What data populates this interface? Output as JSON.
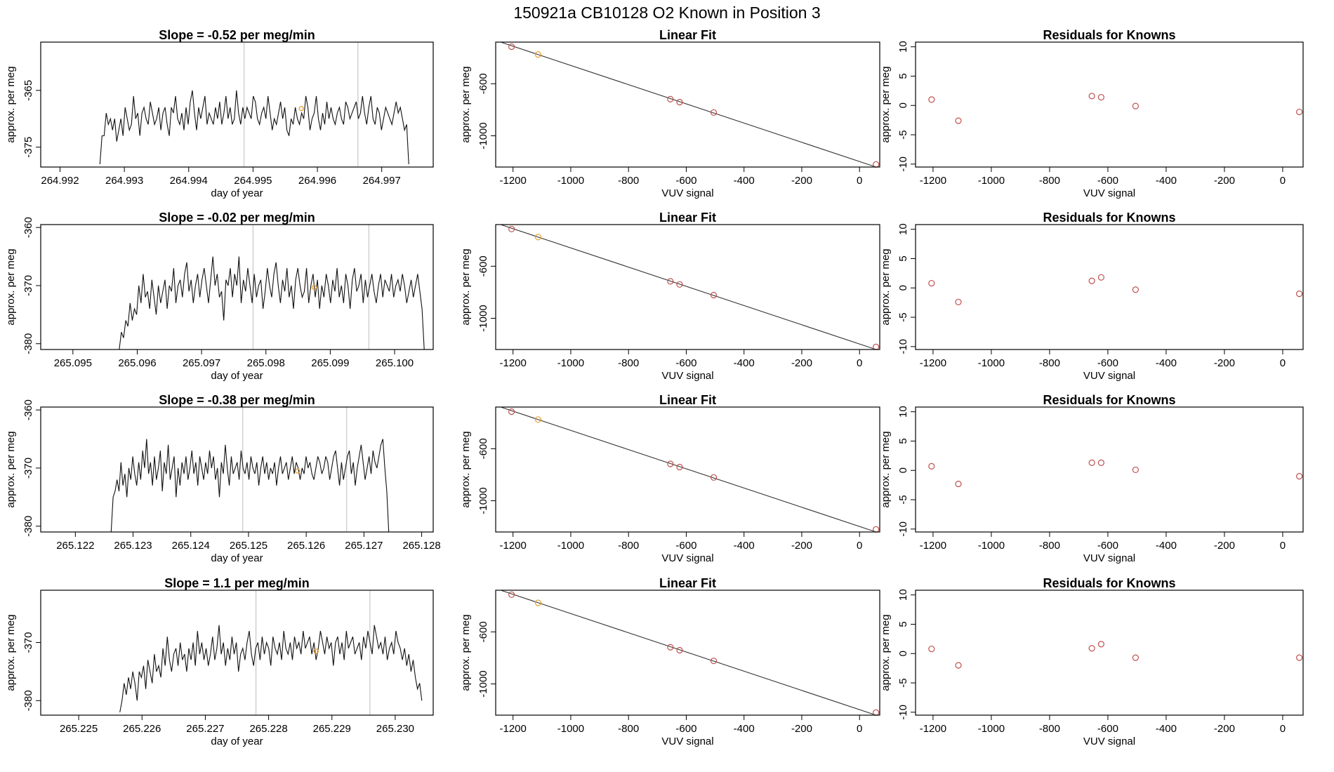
{
  "figure_title": "150921a     CB10128   O2 Known in Position  3",
  "chart_data": [
    {
      "type": "line",
      "panel": "timeseries",
      "row": 1,
      "title": "Slope =  -0.52  per meg/min",
      "xlabel": "day of year",
      "ylabel": "approx. per meg",
      "xlim": [
        264.9917,
        264.9978
      ],
      "ylim": [
        -378.5,
        -356.5
      ],
      "xticks": [
        "264.992",
        "264.993",
        "264.994",
        "264.995",
        "264.996",
        "264.997"
      ],
      "yticks": [
        "-365",
        "-375"
      ],
      "vlines": [
        264.99486,
        264.99663
      ],
      "orange_point": [
        264.99575,
        -368.2
      ],
      "series_x_range": [
        264.99262,
        264.99742
      ],
      "series": [
        -378,
        -373,
        -373,
        -369,
        -371,
        -370,
        -372,
        -370,
        -374,
        -372,
        -370,
        -373,
        -368,
        -370,
        -372,
        -371,
        -366,
        -370,
        -369,
        -373,
        -369,
        -368,
        -370,
        -371,
        -367,
        -369,
        -371,
        -370,
        -368,
        -372,
        -369,
        -368,
        -371,
        -373,
        -368,
        -369,
        -366,
        -370,
        -371,
        -369,
        -372,
        -368,
        -371,
        -367,
        -365,
        -369,
        -372,
        -368,
        -370,
        -368,
        -366,
        -371,
        -369,
        -370,
        -371,
        -368,
        -370,
        -367,
        -371,
        -369,
        -366,
        -370,
        -368,
        -371,
        -370,
        -365,
        -369,
        -371,
        -368,
        -370,
        -368,
        -369,
        -370,
        -366,
        -367,
        -370,
        -371,
        -369,
        -368,
        -370,
        -366,
        -369,
        -372,
        -370,
        -371,
        -369,
        -367,
        -370,
        -368,
        -372,
        -373,
        -370,
        -371,
        -368,
        -370,
        -371,
        -369,
        -370,
        -366,
        -368,
        -372,
        -370,
        -369,
        -366,
        -370,
        -372,
        -369,
        -371,
        -367,
        -370,
        -368,
        -370,
        -371,
        -369,
        -368,
        -370,
        -371,
        -367,
        -368,
        -370,
        -369,
        -368,
        -367,
        -370,
        -369,
        -366,
        -369,
        -371,
        -368,
        -366,
        -370,
        -371,
        -368,
        -369,
        -372,
        -370,
        -368,
        -369,
        -370,
        -371,
        -369,
        -367,
        -369,
        -368,
        -370,
        -372,
        -371,
        -378
      ]
    },
    {
      "type": "scatter",
      "panel": "fit",
      "row": 1,
      "title": "Linear Fit",
      "xlabel": "VUV signal",
      "ylabel": "approx. per meg",
      "xlim": [
        -1260,
        70
      ],
      "ylim": [
        -1240,
        -280
      ],
      "xticks": [
        -1200,
        -1000,
        -800,
        -600,
        -400,
        -200,
        0
      ],
      "yticks": [
        -600,
        -1000
      ],
      "fit_line": [
        [
          -1240,
          -282
        ],
        [
          60,
          -1242
        ]
      ],
      "points": [
        [
          -1205,
          -315
        ],
        [
          -1113,
          -375
        ],
        [
          -655,
          -718
        ],
        [
          -623,
          -741
        ],
        [
          -505,
          -821
        ],
        [
          57,
          -1220
        ]
      ],
      "point_colors": [
        "#c0504d",
        "#e6a02c",
        "#c0504d",
        "#c0504d",
        "#c0504d",
        "#c0504d"
      ]
    },
    {
      "type": "scatter",
      "panel": "residuals",
      "row": 1,
      "title": "Residuals for Knowns",
      "xlabel": "VUV signal",
      "ylabel": "approx. per meg",
      "xlim": [
        -1260,
        70
      ],
      "ylim": [
        -10.5,
        10.8
      ],
      "xticks": [
        -1200,
        -1000,
        -800,
        -600,
        -400,
        -200,
        0
      ],
      "yticks": [
        10,
        5,
        0,
        -5,
        -10
      ],
      "points": [
        [
          -1205,
          1.0
        ],
        [
          -1113,
          -2.6
        ],
        [
          -655,
          1.6
        ],
        [
          -623,
          1.4
        ],
        [
          -505,
          -0.1
        ],
        [
          57,
          -1.1
        ]
      ]
    },
    {
      "type": "line",
      "panel": "timeseries",
      "row": 2,
      "title": "Slope =  -0.02  per meg/min",
      "xlabel": "day of year",
      "ylabel": "approx. per meg",
      "xlim": [
        265.0945,
        265.1006
      ],
      "ylim": [
        -381,
        -359.5
      ],
      "xticks": [
        "265.095",
        "265.096",
        "265.097",
        "265.098",
        "265.099",
        "265.100"
      ],
      "yticks": [
        "-360",
        "-370",
        "-380"
      ],
      "vlines": [
        265.0978,
        265.0996
      ],
      "orange_point": [
        265.09875,
        -370.3
      ],
      "series_x_range": [
        265.09572,
        265.10046
      ],
      "series": [
        -381,
        -378,
        -379,
        -376,
        -377,
        -373,
        -376,
        -374,
        -375,
        -370,
        -373,
        -368,
        -372,
        -371,
        -374,
        -369,
        -372,
        -375,
        -370,
        -373,
        -371,
        -369,
        -374,
        -370,
        -371,
        -367,
        -373,
        -370,
        -369,
        -372,
        -368,
        -366,
        -371,
        -369,
        -373,
        -370,
        -368,
        -372,
        -369,
        -367,
        -370,
        -373,
        -369,
        -365,
        -370,
        -368,
        -372,
        -371,
        -376,
        -369,
        -370,
        -367,
        -372,
        -368,
        -370,
        -365,
        -373,
        -369,
        -371,
        -367,
        -370,
        -373,
        -368,
        -372,
        -370,
        -369,
        -374,
        -371,
        -367,
        -370,
        -372,
        -368,
        -366,
        -370,
        -373,
        -369,
        -371,
        -367,
        -372,
        -370,
        -374,
        -369,
        -367,
        -370,
        -372,
        -371,
        -367,
        -373,
        -370,
        -368,
        -372,
        -369,
        -374,
        -370,
        -372,
        -368,
        -370,
        -373,
        -369,
        -371,
        -367,
        -372,
        -370,
        -373,
        -368,
        -370,
        -374,
        -369,
        -367,
        -371,
        -370,
        -368,
        -373,
        -369,
        -372,
        -370,
        -368,
        -371,
        -373,
        -370,
        -368,
        -372,
        -369,
        -370,
        -371,
        -368,
        -372,
        -370,
        -369,
        -371,
        -368,
        -370,
        -373,
        -371,
        -369,
        -372,
        -370,
        -368,
        -371,
        -374,
        -381
      ]
    },
    {
      "type": "scatter",
      "panel": "fit",
      "row": 2,
      "title": "Linear Fit",
      "xlabel": "VUV signal",
      "ylabel": "approx. per meg",
      "xlim": [
        -1260,
        70
      ],
      "ylim": [
        -1240,
        -280
      ],
      "xticks": [
        -1200,
        -1000,
        -800,
        -600,
        -400,
        -200,
        0
      ],
      "yticks": [
        -600,
        -1000
      ],
      "fit_line": [
        [
          -1240,
          -282
        ],
        [
          60,
          -1242
        ]
      ],
      "points": [
        [
          -1205,
          -314
        ],
        [
          -1113,
          -376
        ],
        [
          -655,
          -716
        ],
        [
          -623,
          -740
        ],
        [
          -505,
          -822
        ],
        [
          57,
          -1220
        ]
      ],
      "point_colors": [
        "#c0504d",
        "#e6a02c",
        "#c0504d",
        "#c0504d",
        "#c0504d",
        "#c0504d"
      ]
    },
    {
      "type": "scatter",
      "panel": "residuals",
      "row": 2,
      "title": "Residuals for Knowns",
      "xlabel": "VUV signal",
      "ylabel": "approx. per meg",
      "xlim": [
        -1260,
        70
      ],
      "ylim": [
        -10.5,
        10.8
      ],
      "xticks": [
        -1200,
        -1000,
        -800,
        -600,
        -400,
        -200,
        0
      ],
      "yticks": [
        10,
        5,
        0,
        -5,
        -10
      ],
      "points": [
        [
          -1205,
          0.8
        ],
        [
          -1113,
          -2.4
        ],
        [
          -655,
          1.2
        ],
        [
          -623,
          1.8
        ],
        [
          -505,
          -0.3
        ],
        [
          57,
          -1.0
        ]
      ]
    },
    {
      "type": "line",
      "panel": "timeseries",
      "row": 3,
      "title": "Slope =  -0.38  per meg/min",
      "xlabel": "day of year",
      "ylabel": "approx. per meg",
      "xlim": [
        265.1214,
        265.1282
      ],
      "ylim": [
        -381,
        -359.5
      ],
      "xticks": [
        "265.122",
        "265.123",
        "265.124",
        "265.125",
        "265.126",
        "265.127",
        "265.128"
      ],
      "yticks": [
        "-360",
        "-370",
        "-380"
      ],
      "vlines": [
        265.1249,
        265.1267
      ],
      "orange_point": [
        265.12585,
        -370.5
      ],
      "series_x_range": [
        265.12262,
        265.12743
      ],
      "series": [
        -381,
        -375,
        -374,
        -372,
        -374,
        -369,
        -373,
        -371,
        -375,
        -370,
        -372,
        -368,
        -371,
        -373,
        -369,
        -372,
        -367,
        -370,
        -365,
        -371,
        -369,
        -373,
        -368,
        -372,
        -370,
        -367,
        -374,
        -369,
        -371,
        -366,
        -372,
        -370,
        -368,
        -375,
        -370,
        -373,
        -369,
        -371,
        -368,
        -372,
        -370,
        -367,
        -371,
        -369,
        -373,
        -368,
        -370,
        -372,
        -369,
        -371,
        -367,
        -370,
        -368,
        -372,
        -370,
        -375,
        -369,
        -371,
        -366,
        -370,
        -373,
        -368,
        -371,
        -370,
        -369,
        -372,
        -367,
        -370,
        -371,
        -369,
        -372,
        -368,
        -370,
        -371,
        -369,
        -373,
        -370,
        -368,
        -371,
        -369,
        -372,
        -370,
        -371,
        -369,
        -373,
        -370,
        -368,
        -371,
        -370,
        -369,
        -372,
        -370,
        -368,
        -371,
        -369,
        -370,
        -372,
        -370,
        -371,
        -368,
        -370,
        -369,
        -371,
        -372,
        -370,
        -368,
        -369,
        -371,
        -370,
        -368,
        -369,
        -372,
        -370,
        -368,
        -367,
        -370,
        -373,
        -369,
        -372,
        -370,
        -368,
        -367,
        -371,
        -369,
        -373,
        -370,
        -368,
        -366,
        -369,
        -372,
        -370,
        -368,
        -371,
        -367,
        -369,
        -370,
        -368,
        -366,
        -365,
        -370,
        -374,
        -381
      ]
    },
    {
      "type": "scatter",
      "panel": "fit",
      "row": 3,
      "title": "Linear Fit",
      "xlabel": "VUV signal",
      "ylabel": "approx. per meg",
      "xlim": [
        -1260,
        70
      ],
      "ylim": [
        -1240,
        -280
      ],
      "xticks": [
        -1200,
        -1000,
        -800,
        -600,
        -400,
        -200,
        0
      ],
      "yticks": [
        -600,
        -1000
      ],
      "fit_line": [
        [
          -1240,
          -282
        ],
        [
          60,
          -1242
        ]
      ],
      "points": [
        [
          -1205,
          -315
        ],
        [
          -1113,
          -376
        ],
        [
          -655,
          -717
        ],
        [
          -623,
          -741
        ],
        [
          -505,
          -821
        ],
        [
          57,
          -1220
        ]
      ],
      "point_colors": [
        "#c0504d",
        "#e6a02c",
        "#c0504d",
        "#c0504d",
        "#c0504d",
        "#c0504d"
      ]
    },
    {
      "type": "scatter",
      "panel": "residuals",
      "row": 3,
      "title": "Residuals for Knowns",
      "xlabel": "VUV signal",
      "ylabel": "approx. per meg",
      "xlim": [
        -1260,
        70
      ],
      "ylim": [
        -10.5,
        10.8
      ],
      "xticks": [
        -1200,
        -1000,
        -800,
        -600,
        -400,
        -200,
        0
      ],
      "yticks": [
        10,
        5,
        0,
        -5,
        -10
      ],
      "points": [
        [
          -1205,
          0.7
        ],
        [
          -1113,
          -2.3
        ],
        [
          -655,
          1.3
        ],
        [
          -623,
          1.3
        ],
        [
          -505,
          0.1
        ],
        [
          57,
          -1.0
        ]
      ]
    },
    {
      "type": "line",
      "panel": "timeseries",
      "row": 4,
      "title": "Slope =  1.1  per meg/min",
      "xlabel": "day of year",
      "ylabel": "approx. per meg",
      "xlim": [
        265.2244,
        265.2306
      ],
      "ylim": [
        -382.5,
        -361
      ],
      "xticks": [
        "265.225",
        "265.226",
        "265.227",
        "265.228",
        "265.229",
        "265.230"
      ],
      "yticks": [
        "-370",
        "-380"
      ],
      "vlines": [
        265.2278,
        265.2296
      ],
      "orange_point": [
        265.22875,
        -371.5
      ],
      "series_x_range": [
        265.22565,
        265.23042
      ],
      "series": [
        -382,
        -380,
        -377,
        -379,
        -376,
        -378,
        -375,
        -377,
        -380,
        -375,
        -376,
        -374,
        -378,
        -373,
        -375,
        -377,
        -372,
        -375,
        -374,
        -376,
        -371,
        -374,
        -369,
        -373,
        -375,
        -372,
        -371,
        -374,
        -370,
        -373,
        -372,
        -375,
        -371,
        -373,
        -370,
        -374,
        -368,
        -372,
        -370,
        -373,
        -371,
        -374,
        -372,
        -369,
        -373,
        -371,
        -367,
        -372,
        -370,
        -374,
        -371,
        -373,
        -369,
        -372,
        -370,
        -375,
        -372,
        -371,
        -373,
        -370,
        -368,
        -372,
        -374,
        -371,
        -370,
        -373,
        -369,
        -372,
        -370,
        -371,
        -374,
        -369,
        -371,
        -372,
        -370,
        -373,
        -368,
        -371,
        -372,
        -370,
        -373,
        -369,
        -371,
        -370,
        -372,
        -368,
        -371,
        -370,
        -369,
        -372,
        -370,
        -373,
        -371,
        -368,
        -370,
        -372,
        -369,
        -371,
        -370,
        -374,
        -370,
        -369,
        -372,
        -370,
        -373,
        -368,
        -371,
        -370,
        -369,
        -372,
        -371,
        -370,
        -373,
        -369,
        -371,
        -368,
        -370,
        -372,
        -367,
        -369,
        -371,
        -370,
        -372,
        -369,
        -373,
        -371,
        -370,
        -372,
        -368,
        -370,
        -371,
        -373,
        -371,
        -374,
        -372,
        -375,
        -373,
        -376,
        -378,
        -377,
        -380
      ]
    },
    {
      "type": "scatter",
      "panel": "fit",
      "row": 4,
      "title": "Linear Fit",
      "xlabel": "VUV signal",
      "ylabel": "approx. per meg",
      "xlim": [
        -1260,
        70
      ],
      "ylim": [
        -1240,
        -280
      ],
      "xticks": [
        -1200,
        -1000,
        -800,
        -600,
        -400,
        -200,
        0
      ],
      "yticks": [
        -600,
        -1000
      ],
      "fit_line": [
        [
          -1240,
          -282
        ],
        [
          60,
          -1242
        ]
      ],
      "points": [
        [
          -1205,
          -314
        ],
        [
          -1113,
          -377
        ],
        [
          -655,
          -718
        ],
        [
          -623,
          -741
        ],
        [
          -505,
          -823
        ],
        [
          57,
          -1220
        ]
      ],
      "point_colors": [
        "#c0504d",
        "#e6a02c",
        "#c0504d",
        "#c0504d",
        "#c0504d",
        "#c0504d"
      ]
    },
    {
      "type": "scatter",
      "panel": "residuals",
      "row": 4,
      "title": "Residuals for Knowns",
      "xlabel": "VUV signal",
      "ylabel": "approx. per meg",
      "xlim": [
        -1260,
        70
      ],
      "ylim": [
        -10.5,
        10.8
      ],
      "xticks": [
        -1200,
        -1000,
        -800,
        -600,
        -400,
        -200,
        0
      ],
      "yticks": [
        10,
        5,
        0,
        -5,
        -10
      ],
      "points": [
        [
          -1205,
          0.8
        ],
        [
          -1113,
          -2.0
        ],
        [
          -655,
          0.9
        ],
        [
          -623,
          1.6
        ],
        [
          -505,
          -0.7
        ],
        [
          57,
          -0.7
        ]
      ]
    }
  ]
}
